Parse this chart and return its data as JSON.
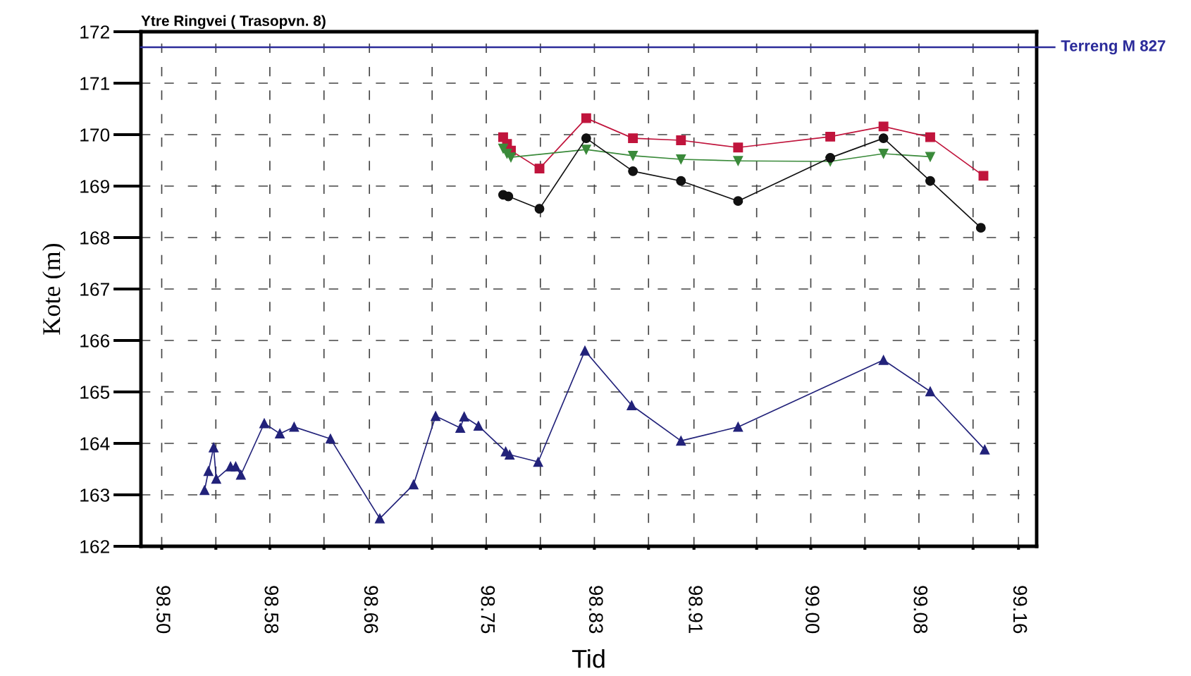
{
  "chart_data": {
    "type": "line",
    "title": "Ytre Ringvei ( Trasopvn. 8)",
    "xlabel": "Tid",
    "ylabel": "Kote (m)",
    "xlim": [
      98.484,
      99.174
    ],
    "ylim": [
      162,
      172
    ],
    "yticks": [
      162,
      163,
      164,
      165,
      166,
      167,
      168,
      169,
      170,
      171,
      172
    ],
    "xticks": [
      {
        "value": 98.5,
        "label": "98.50"
      },
      {
        "value": 98.5417,
        "label": null
      },
      {
        "value": 98.5833,
        "label": "98.58"
      },
      {
        "value": 98.625,
        "label": null
      },
      {
        "value": 98.66,
        "label": "98.66"
      },
      {
        "value": 98.7083,
        "label": null
      },
      {
        "value": 98.75,
        "label": "98.75"
      },
      {
        "value": 98.7917,
        "label": null
      },
      {
        "value": 98.8333,
        "label": "98.83"
      },
      {
        "value": 98.875,
        "label": null
      },
      {
        "value": 98.91,
        "label": "98.91"
      },
      {
        "value": 98.9583,
        "label": null
      },
      {
        "value": 99.0,
        "label": "99.00"
      },
      {
        "value": 99.0417,
        "label": null
      },
      {
        "value": 99.0833,
        "label": "99.08"
      },
      {
        "value": 99.125,
        "label": null
      },
      {
        "value": 99.16,
        "label": "99.16"
      }
    ],
    "grid": true,
    "line_style": "solid",
    "ref_lines": [
      {
        "axis": "y",
        "value": 171.7,
        "label": "Terreng M 827",
        "color": "#2b2b9a"
      }
    ],
    "series": [
      {
        "color": "#c0143c",
        "marker": "square",
        "x": [
          98.763,
          98.766,
          98.769,
          98.791,
          98.827,
          98.863,
          98.9,
          98.944,
          99.015,
          99.056,
          99.092,
          99.133
        ],
        "values": [
          169.95,
          169.82,
          169.69,
          169.34,
          170.32,
          169.93,
          169.89,
          169.75,
          169.96,
          170.16,
          169.95,
          169.2
        ]
      },
      {
        "color": "#3a8a3a",
        "marker": "triangle_down",
        "x": [
          98.763,
          98.766,
          98.769,
          98.827,
          98.863,
          98.9,
          98.944,
          99.015,
          99.056,
          99.092
        ],
        "values": [
          169.73,
          169.63,
          169.56,
          169.71,
          169.59,
          169.52,
          169.49,
          169.48,
          169.63,
          169.57
        ]
      },
      {
        "color": "#111111",
        "marker": "circle",
        "x": [
          98.763,
          98.767,
          98.791,
          98.827,
          98.863,
          98.9,
          98.944,
          99.015,
          99.056,
          99.092,
          99.131
        ],
        "values": [
          168.83,
          168.8,
          168.56,
          169.93,
          169.29,
          169.1,
          168.71,
          169.55,
          169.93,
          169.1,
          168.19
        ]
      },
      {
        "color": "#22227a",
        "marker": "triangle",
        "x": [
          98.533,
          98.536,
          98.54,
          98.542,
          98.553,
          98.557,
          98.561,
          98.579,
          98.591,
          98.602,
          98.63,
          98.668,
          98.694,
          98.711,
          98.73,
          98.733,
          98.744,
          98.765,
          98.768,
          98.79,
          98.826,
          98.862,
          98.9,
          98.944,
          99.056,
          99.092,
          99.134
        ],
        "values": [
          163.09,
          163.46,
          163.92,
          163.31,
          163.55,
          163.55,
          163.39,
          164.39,
          164.19,
          164.32,
          164.09,
          162.54,
          163.2,
          164.53,
          164.3,
          164.52,
          164.34,
          163.84,
          163.78,
          163.64,
          165.8,
          164.74,
          164.05,
          164.32,
          165.62,
          165.01,
          163.88
        ]
      }
    ]
  }
}
